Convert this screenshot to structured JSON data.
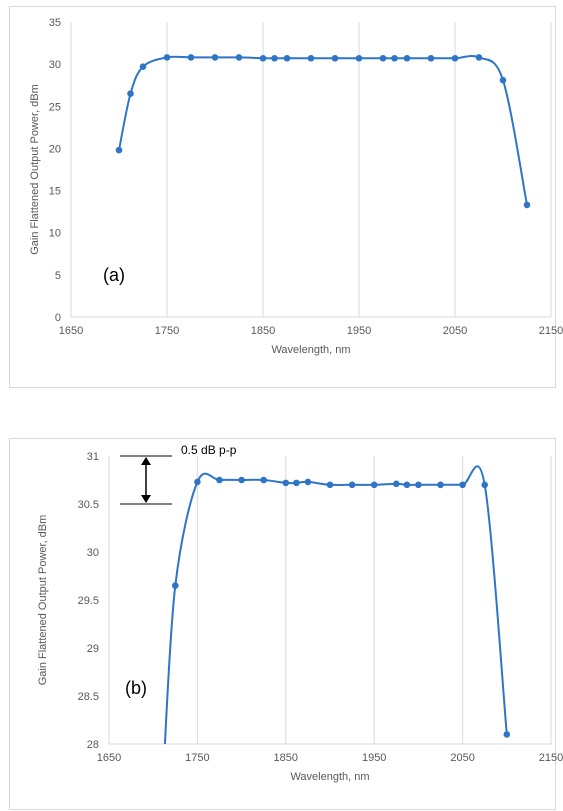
{
  "chart_data": [
    {
      "type": "line",
      "label": "(a)",
      "xlabel": "Wavelength, nm",
      "ylabel": "Gain Flattened Output Power, dBm",
      "xlim": [
        1650,
        2150
      ],
      "ylim": [
        0,
        35
      ],
      "xticks": [
        1650,
        1750,
        1850,
        1950,
        2050,
        2150
      ],
      "yticks": [
        0,
        5,
        10,
        15,
        20,
        25,
        30,
        35
      ],
      "grid": "vertical",
      "color": "#2e75c8",
      "x": [
        1700,
        1712,
        1725,
        1750,
        1775,
        1800,
        1825,
        1850,
        1862,
        1875,
        1900,
        1925,
        1950,
        1975,
        1987,
        2000,
        2025,
        2050,
        2075,
        2100,
        2125
      ],
      "y": [
        19.8,
        26.5,
        29.7,
        30.8,
        30.8,
        30.8,
        30.8,
        30.7,
        30.7,
        30.7,
        30.7,
        30.7,
        30.7,
        30.7,
        30.7,
        30.7,
        30.7,
        30.7,
        30.8,
        28.1,
        13.3
      ]
    },
    {
      "type": "line",
      "label": "(b)",
      "xlabel": "Wavelength, nm",
      "ylabel": "Gain Flattened Output Power, dBm",
      "xlim": [
        1650,
        2150
      ],
      "ylim": [
        28,
        31
      ],
      "xticks": [
        1650,
        1750,
        1850,
        1950,
        2050,
        2150
      ],
      "yticks": [
        28,
        28.5,
        29,
        29.5,
        30,
        30.5,
        31
      ],
      "grid": "vertical",
      "color": "#2e75c8",
      "annotation": "0.5 dB p-p",
      "x": [
        1725,
        1750,
        1775,
        1800,
        1825,
        1850,
        1862,
        1875,
        1900,
        1925,
        1950,
        1975,
        1987,
        2000,
        2025,
        2050,
        2075,
        2100
      ],
      "y": [
        29.65,
        30.73,
        30.75,
        30.75,
        30.75,
        30.72,
        30.72,
        30.73,
        30.7,
        30.7,
        30.7,
        30.71,
        30.7,
        30.7,
        30.7,
        30.7,
        30.7,
        28.1
      ],
      "curve_below_range_x": 1712
    }
  ]
}
